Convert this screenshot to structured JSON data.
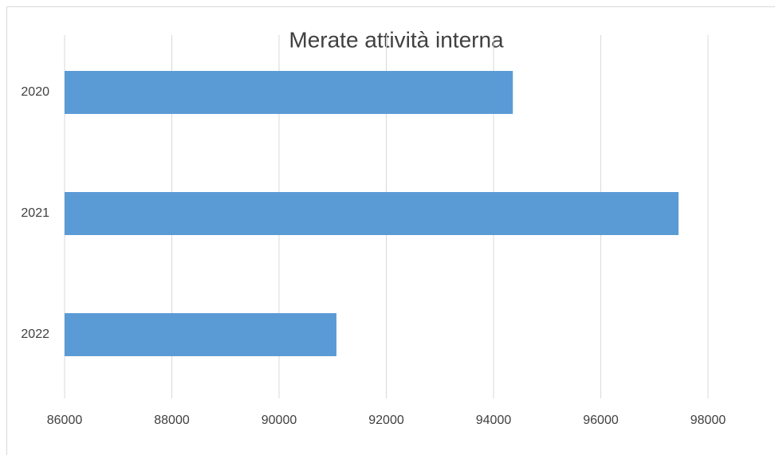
{
  "chart_data": {
    "type": "barh",
    "title": "Merate attività interna",
    "categories": [
      "2020",
      "2021",
      "2022"
    ],
    "values": [
      94360,
      97450,
      91070
    ],
    "color": "#5b9bd5",
    "xlim": [
      86000,
      98000
    ],
    "xticks": [
      86000,
      88000,
      90000,
      92000,
      94000,
      96000,
      98000
    ],
    "grid": true
  }
}
